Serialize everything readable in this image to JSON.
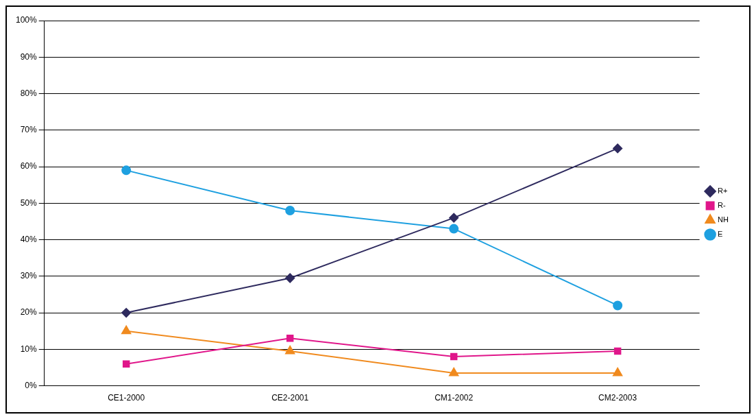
{
  "chart_data": {
    "type": "line",
    "categories": [
      "CE1-2000",
      "CE2-2001",
      "CM1-2002",
      "CM2-2003"
    ],
    "series": [
      {
        "name": "R+",
        "color": "#2e2a5e",
        "marker": "diamond",
        "values": [
          20,
          29.5,
          46,
          65
        ]
      },
      {
        "name": "R-",
        "color": "#e0168a",
        "marker": "square",
        "values": [
          6,
          13,
          8,
          9.5
        ]
      },
      {
        "name": "NH",
        "color": "#f08a1e",
        "marker": "triangle",
        "values": [
          15,
          9.5,
          3.5,
          3.5
        ]
      },
      {
        "name": "E",
        "color": "#1ea0e0",
        "marker": "circle",
        "values": [
          59,
          48,
          43,
          22
        ]
      }
    ],
    "ylim": [
      0,
      100
    ],
    "yticks": [
      {
        "value": 0,
        "label": "0%"
      },
      {
        "value": 10,
        "label": "10%"
      },
      {
        "value": 20,
        "label": "20%"
      },
      {
        "value": 30,
        "label": "30%"
      },
      {
        "value": 40,
        "label": "40%"
      },
      {
        "value": 50,
        "label": "50%"
      },
      {
        "value": 60,
        "label": "60%"
      },
      {
        "value": 70,
        "label": "70%"
      },
      {
        "value": 80,
        "label": "80%"
      },
      {
        "value": 90,
        "label": "90%"
      },
      {
        "value": 100,
        "label": "100%"
      }
    ],
    "grid": "y",
    "legend": "right",
    "line_style": "solid"
  }
}
